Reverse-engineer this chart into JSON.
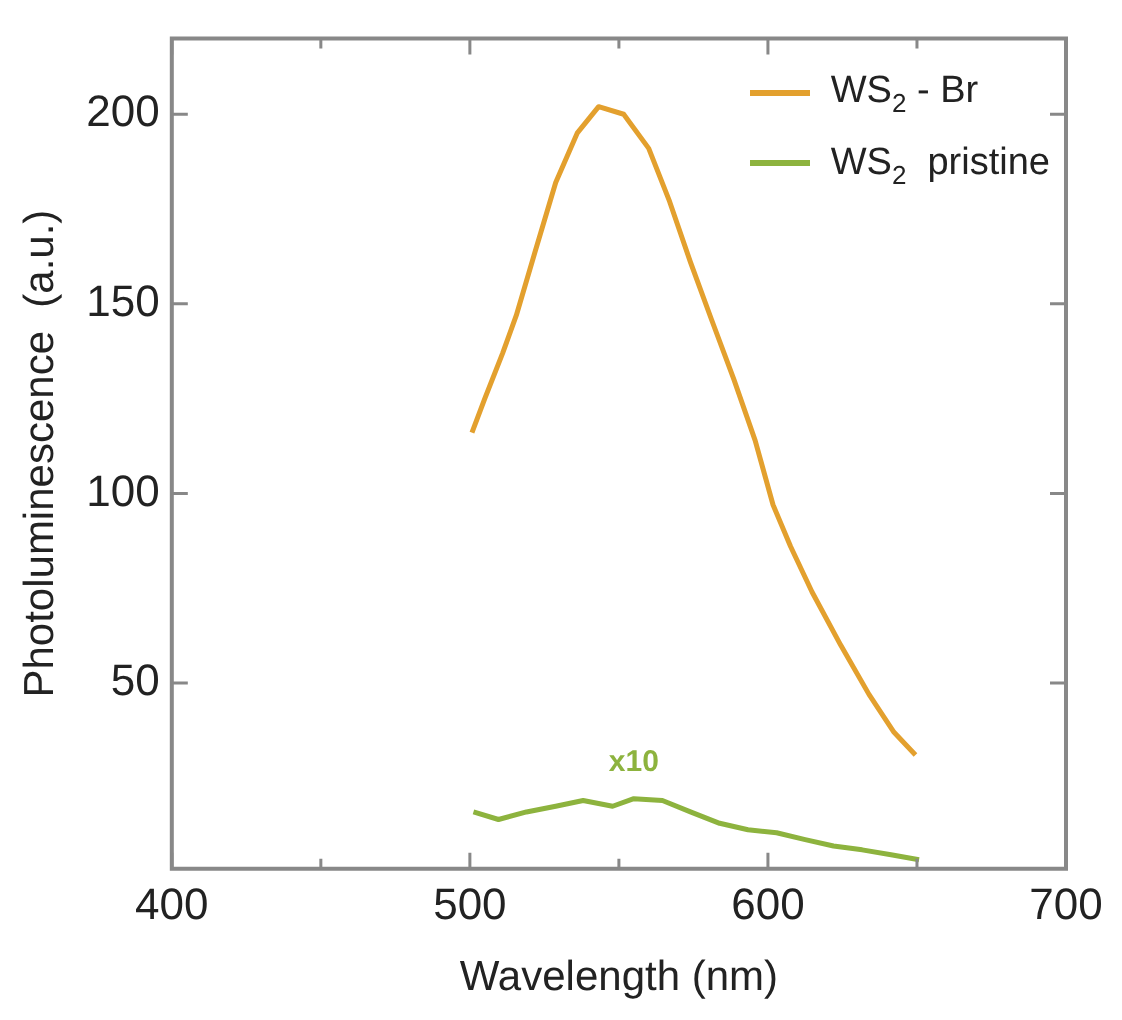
{
  "chart_data": {
    "type": "line",
    "xlabel": "Wavelength (nm)",
    "ylabel": "Photoluminescence  (a.u.)",
    "xlim": [
      400,
      700
    ],
    "xticks": [
      400,
      {
        "value": 450,
        "label": null
      },
      500,
      {
        "value": 550,
        "label": null
      },
      600,
      {
        "value": 650,
        "label": null
      },
      700
    ],
    "ylim": [
      1,
      220
    ],
    "yticks": [
      50,
      100,
      150,
      200
    ],
    "legend": "top right",
    "marker": "none",
    "line_style": "solid",
    "annotations": [
      "x10"
    ],
    "series": [
      {
        "name": "WS$_{2}$ - Br",
        "color": "#e3a02e",
        "x": [
          500.7,
          505,
          511,
          515.6,
          521.6,
          528.8,
          536,
          543.2,
          551.6,
          560,
          567,
          574,
          581,
          588.6,
          595.7,
          601.7,
          607.6,
          614.8,
          624.4,
          633.9,
          642.3,
          649.5
        ],
        "values": [
          116,
          125,
          137,
          147,
          163,
          182,
          195,
          202,
          200,
          191,
          177,
          161,
          146,
          130,
          114,
          97,
          86,
          74,
          60,
          47,
          37,
          31
        ]
      },
      {
        "name": "WS$_{2}$  pristine",
        "color": "#8db33e",
        "x": [
          501.2,
          509.6,
          519,
          528.8,
          538,
          547.9,
          555,
          564.6,
          574,
          583.8,
          593.3,
          602.9,
          612.5,
          622,
          631.6,
          641.3,
          650.7
        ],
        "values": [
          16,
          14,
          16,
          17.5,
          19,
          17.5,
          19.5,
          19,
          16,
          13,
          11.3,
          10.5,
          8.7,
          7,
          6,
          4.7,
          3.4
        ]
      }
    ]
  }
}
